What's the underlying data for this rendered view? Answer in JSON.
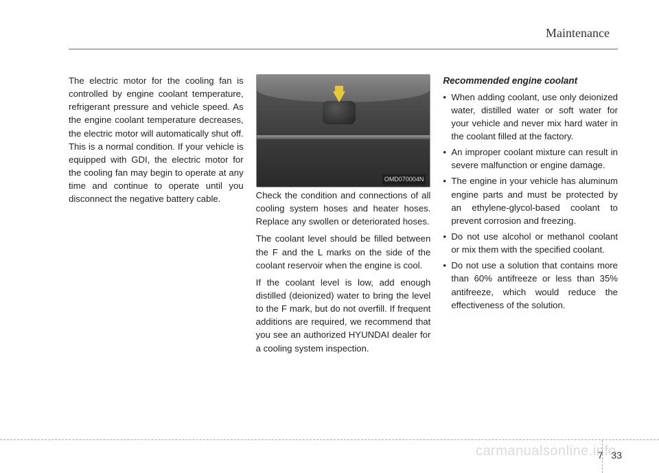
{
  "header": {
    "section_title": "Maintenance"
  },
  "column1": {
    "paragraph1": "The electric motor for the cooling fan is controlled by engine coolant temperature, refrigerant pressure and vehicle speed. As the engine coolant temperature decreases, the electric motor will automatically shut off. This is a normal condition. If your vehicle is equipped with GDI, the electric motor for the cooling fan may begin to operate at any time and continue to operate until you disconnect the negative battery cable."
  },
  "column2": {
    "figure_label": "OMD070004N",
    "paragraph1": "Check the condition and connections of all cooling system hoses and heater hoses. Replace any swollen or deteriorated hoses.",
    "paragraph2": "The coolant level should be filled between the F and the L marks on the side of the coolant reservoir when the engine is cool.",
    "paragraph3": "If the coolant level is low, add enough distilled (deionized) water to bring the level to the F mark, but do not overfill. If frequent additions are required, we recommend that you see an authorized HYUNDAI dealer for a cooling system inspection."
  },
  "column3": {
    "subhead": "Recommended engine coolant",
    "bullets": [
      "When adding coolant, use only deionized water, distilled water or soft water for your vehicle and never mix hard water in the coolant filled at the factory.",
      "An improper coolant mixture can result in severe malfunction or engine damage.",
      "The engine in your vehicle has aluminum engine parts and must be protected by an ethylene-glycol-based coolant to prevent corrosion and freezing.",
      "Do not use alcohol or methanol coolant or mix them with the specified coolant.",
      "Do not use a solution that contains more than 60% antifreeze or less than 35% antifreeze, which would reduce the effectiveness of the solution."
    ]
  },
  "footer": {
    "chapter": "7",
    "page": "33"
  },
  "watermark": "carmanualsonline.info",
  "colors": {
    "text": "#222222",
    "rule": "#666666",
    "arrow": "#e8c838",
    "watermark": "rgba(150,150,150,0.35)"
  }
}
